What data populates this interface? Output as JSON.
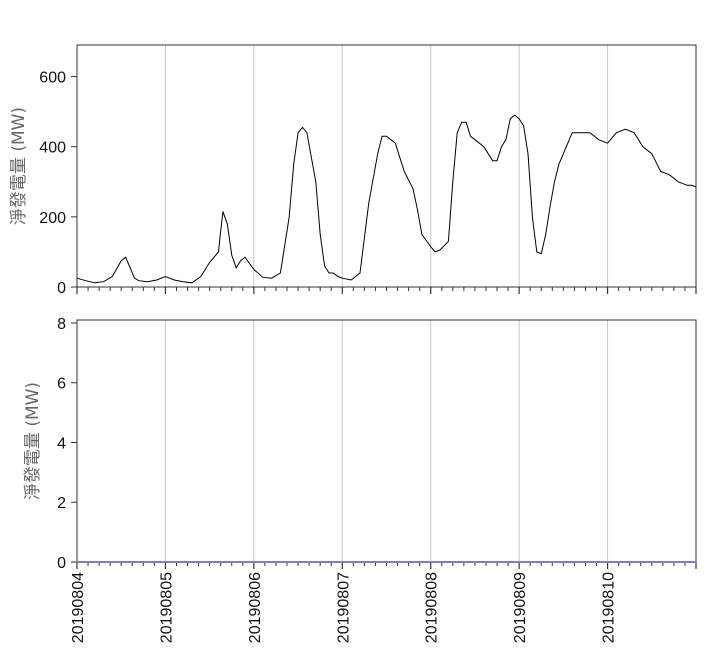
{
  "chart_data": [
    {
      "type": "line",
      "ylabel": "淨發電量 (MW)",
      "ylim": [
        0,
        690
      ],
      "yticks": [
        0,
        200,
        400,
        600
      ],
      "xlim": [
        0,
        7
      ],
      "grid": "vertical",
      "series_color": "#000000",
      "x": [
        0.0,
        0.1,
        0.2,
        0.3,
        0.4,
        0.5,
        0.55,
        0.6,
        0.65,
        0.7,
        0.8,
        0.9,
        1.0,
        1.1,
        1.2,
        1.3,
        1.4,
        1.5,
        1.6,
        1.62,
        1.65,
        1.7,
        1.75,
        1.8,
        1.85,
        1.9,
        2.0,
        2.1,
        2.2,
        2.3,
        2.4,
        2.45,
        2.5,
        2.55,
        2.6,
        2.7,
        2.75,
        2.8,
        2.85,
        2.9,
        2.95,
        3.0,
        3.1,
        3.2,
        3.3,
        3.4,
        3.45,
        3.5,
        3.55,
        3.6,
        3.7,
        3.8,
        3.85,
        3.9,
        4.0,
        4.05,
        4.1,
        4.2,
        4.25,
        4.3,
        4.35,
        4.4,
        4.45,
        4.5,
        4.55,
        4.6,
        4.65,
        4.7,
        4.75,
        4.8,
        4.85,
        4.9,
        4.95,
        5.0,
        5.05,
        5.1,
        5.15,
        5.2,
        5.25,
        5.3,
        5.35,
        5.4,
        5.45,
        5.5,
        5.55,
        5.6,
        5.7,
        5.8,
        5.9,
        6.0,
        6.1,
        6.2,
        6.3,
        6.4,
        6.5,
        6.6,
        6.7,
        6.8,
        6.9,
        6.95,
        7.0
      ],
      "series": [
        {
          "values": [
            25,
            18,
            12,
            15,
            30,
            75,
            85,
            55,
            25,
            18,
            15,
            20,
            30,
            20,
            15,
            12,
            30,
            70,
            100,
            150,
            215,
            180,
            90,
            55,
            75,
            85,
            50,
            28,
            25,
            40,
            200,
            350,
            440,
            455,
            440,
            300,
            150,
            60,
            40,
            40,
            30,
            25,
            20,
            40,
            240,
            380,
            430,
            430,
            420,
            410,
            330,
            280,
            220,
            150,
            115,
            100,
            105,
            130,
            300,
            440,
            470,
            470,
            430,
            420,
            410,
            400,
            380,
            360,
            360,
            400,
            420,
            480,
            490,
            480,
            460,
            380,
            200,
            100,
            95,
            150,
            230,
            300,
            350,
            380,
            410,
            440,
            440,
            440,
            420,
            410,
            440,
            450,
            440,
            400,
            380,
            330,
            320,
            300,
            290,
            290,
            285
          ]
        }
      ]
    },
    {
      "type": "line",
      "ylabel": "淨發電量 (MW)",
      "ylim": [
        0,
        8.1
      ],
      "yticks": [
        0,
        2,
        4,
        6,
        8
      ],
      "xlim": [
        0,
        7
      ],
      "grid": "vertical",
      "series_color": "#7b80c0",
      "x": [
        0,
        7
      ],
      "series": [
        {
          "values": [
            0,
            0
          ]
        }
      ]
    }
  ],
  "x_axis": {
    "date_labels": [
      "20190804",
      "20190805",
      "20190806",
      "20190807",
      "20190808",
      "20190809",
      "20190810"
    ]
  }
}
